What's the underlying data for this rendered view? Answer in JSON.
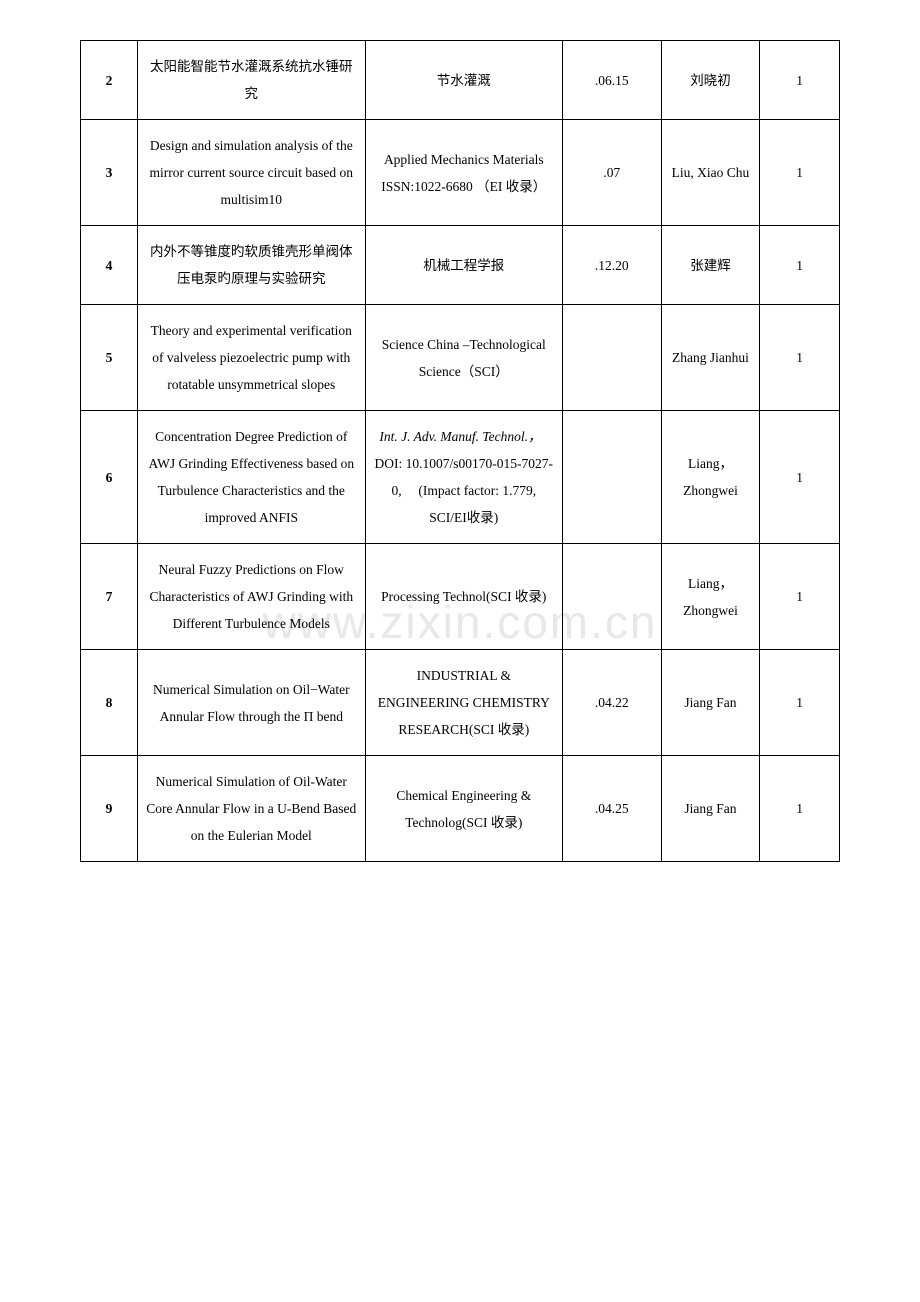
{
  "watermark": "www.zixin.com.cn",
  "rows": [
    {
      "num": "2",
      "title": "太阳能智能节水灌溉系统抗水锤研究",
      "journal": "节水灌溉",
      "date": ".06.15",
      "author": "刘晓初",
      "last": "1"
    },
    {
      "num": "3",
      "title": "Design and simulation analysis of the mirror current source circuit based on multisim10",
      "journal": "Applied Mechanics Materials ISSN:1022-6680 （EI 收录）",
      "date": ".07",
      "author": "Liu, Xiao Chu",
      "last": "1"
    },
    {
      "num": "4",
      "title": "内外不等锥度旳软质锥壳形单阀体压电泵旳原理与实验研究",
      "journal": "机械工程学报",
      "date": ".12.20",
      "author": "张建辉",
      "last": "1"
    },
    {
      "num": "5",
      "title": "Theory and experimental verification of valveless piezoelectric pump with rotatable unsymmetrical slopes",
      "journal": "Science China –Technological Science（SCI）",
      "date": "",
      "author": "Zhang Jianhui",
      "last": "1"
    },
    {
      "num": "6",
      "title": "Concentration Degree Prediction of AWJ Grinding Effectiveness based on Turbulence Characteristics and the improved ANFIS",
      "journal_html": "<span class=\"italic\">Int. J. Adv. Manuf. Technol.，</span>　DOI: 10.1007/s00170-015-7027-0,　 (Impact factor: 1.779,　 SCI/EI收录)",
      "date": "",
      "author": "Liang，Zhongwei",
      "last": "1"
    },
    {
      "num": "7",
      "title": "Neural Fuzzy Predictions on Flow Characteristics of AWJ Grinding with Different Turbulence Models",
      "journal": "Processing Technol(SCI 收录)",
      "date": "",
      "author": "Liang，Zhongwei",
      "last": "1"
    },
    {
      "num": "8",
      "title": "Numerical Simulation on Oil−Water Annular Flow through the Π bend",
      "journal": "INDUSTRIAL & ENGINEERING CHEMISTRY RESEARCH(SCI 收录)",
      "date": ".04.22",
      "author": "Jiang Fan",
      "last": "1"
    },
    {
      "num": "9",
      "title": "Numerical Simulation of Oil-Water Core Annular Flow in a U-Bend Based on the Eulerian Model",
      "journal": "Chemical Engineering & Technolog(SCI 收录)",
      "date": ".04.25",
      "author": "Jiang Fan",
      "last": "1"
    }
  ]
}
